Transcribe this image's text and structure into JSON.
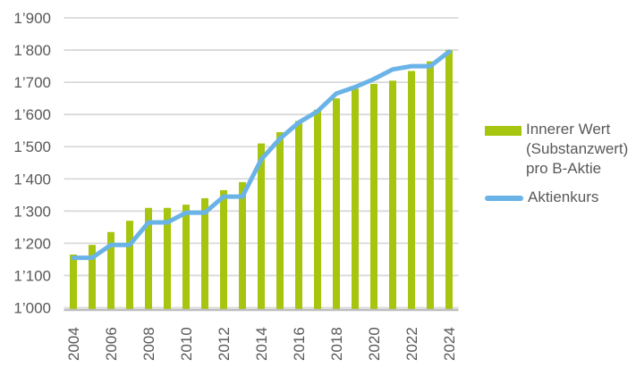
{
  "chart_data": {
    "type": "combo",
    "title": "",
    "xlabel": "",
    "ylabel": "",
    "categories": [
      "2004",
      "2005",
      "2006",
      "2007",
      "2008",
      "2009",
      "2010",
      "2011",
      "2012",
      "2013",
      "2014",
      "2015",
      "2016",
      "2017",
      "2018",
      "2019",
      "2020",
      "2021",
      "2022",
      "2023",
      "2024"
    ],
    "series": [
      {
        "name": "Innerer Wert (Substanzwert) pro B-Aktie",
        "type": "bar",
        "color": "#a6c50e",
        "values": [
          1165,
          1195,
          1235,
          1270,
          1310,
          1310,
          1320,
          1340,
          1365,
          1390,
          1510,
          1545,
          1580,
          1615,
          1650,
          1680,
          1695,
          1705,
          1735,
          1765,
          1800
        ]
      },
      {
        "name": "Aktienkurs",
        "type": "line",
        "color": "#6ab3e7",
        "values": [
          1155,
          1155,
          1195,
          1195,
          1265,
          1265,
          1295,
          1295,
          1345,
          1345,
          1460,
          1525,
          1575,
          1610,
          1665,
          1685,
          1710,
          1740,
          1750,
          1750,
          1795
        ]
      }
    ],
    "ylim": [
      1000,
      1900
    ],
    "ytick_step": 100,
    "yticks": [
      {
        "value": 1000,
        "label": "1’000"
      },
      {
        "value": 1100,
        "label": "1’100"
      },
      {
        "value": 1200,
        "label": "1’200"
      },
      {
        "value": 1300,
        "label": "1’300"
      },
      {
        "value": 1400,
        "label": "1’400"
      },
      {
        "value": 1500,
        "label": "1’500"
      },
      {
        "value": 1600,
        "label": "1’600"
      },
      {
        "value": 1700,
        "label": "1’700"
      },
      {
        "value": 1800,
        "label": "1’800"
      },
      {
        "value": 1900,
        "label": "1’900"
      }
    ],
    "xtick_labels": [
      "2004",
      "2006",
      "2008",
      "2010",
      "2012",
      "2014",
      "2016",
      "2018",
      "2020",
      "2022",
      "2024"
    ],
    "grid": true,
    "legend_position": "right"
  },
  "legend": {
    "items": [
      {
        "swatch": "bar-swatch",
        "lines": [
          "Innerer Wert",
          "(Substanzwert)",
          "pro B-Aktie"
        ]
      },
      {
        "swatch": "line-swatch",
        "lines": [
          "Aktienkurs"
        ]
      }
    ]
  },
  "colors": {
    "bar": "#a6c50e",
    "line": "#6ab3e7",
    "text": "#595959",
    "gridline": "#d9d9d9",
    "axis": "#bdbdbd",
    "background": "#ffffff"
  }
}
